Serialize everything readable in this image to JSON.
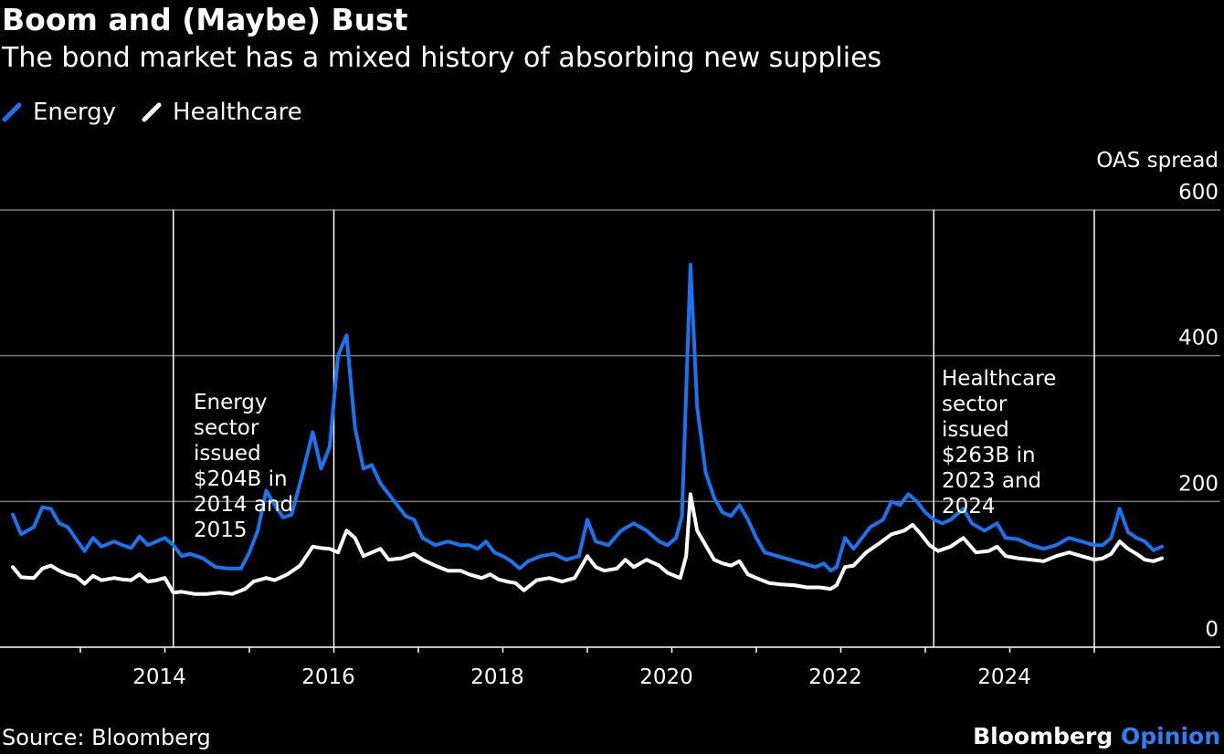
{
  "header": {
    "title": "Boom and (Maybe) Bust",
    "subtitle": "The bond market has a mixed history of absorbing new supplies"
  },
  "legend": [
    {
      "label": "Energy",
      "color": "#1a73f0"
    },
    {
      "label": "Healthcare",
      "color": "#ffffff"
    }
  ],
  "footer": {
    "source": "Source: Bloomberg",
    "brand_main": "Bloomberg",
    "brand_accent": "Opinion"
  },
  "chart_data": {
    "type": "line",
    "ylabel": "OAS spread",
    "ylim": [
      0,
      600
    ],
    "yticks": [
      0,
      200,
      400,
      600
    ],
    "xlim": [
      2012.2,
      2025.8
    ],
    "xtick_labels": [
      "2014",
      "2016",
      "2018",
      "2020",
      "2022",
      "2024"
    ],
    "xtick_positions": [
      2014,
      2016,
      2018,
      2020,
      2022,
      2024
    ],
    "minor_xticks": [
      2013,
      2015,
      2017,
      2019,
      2021,
      2023,
      2025
    ],
    "grid": true,
    "legend_position": "top-left",
    "annotations": [
      {
        "text_lines": [
          "Energy",
          "sector",
          "issued",
          "$204B in",
          "2014 and",
          "2015"
        ]
      },
      {
        "text_lines": [
          "Healthcare",
          "sector",
          "issued",
          "$263B in",
          "2023 and",
          "2024"
        ]
      }
    ],
    "vlines": [
      2014.1,
      2016.0,
      2023.1,
      2025.0
    ],
    "series": [
      {
        "name": "Energy",
        "color": "#1a73f0",
        "points": [
          [
            2012.2,
            182
          ],
          [
            2012.3,
            155
          ],
          [
            2012.45,
            165
          ],
          [
            2012.55,
            192
          ],
          [
            2012.65,
            190
          ],
          [
            2012.75,
            170
          ],
          [
            2012.85,
            165
          ],
          [
            2012.95,
            148
          ],
          [
            2013.05,
            132
          ],
          [
            2013.15,
            150
          ],
          [
            2013.25,
            138
          ],
          [
            2013.4,
            145
          ],
          [
            2013.5,
            140
          ],
          [
            2013.6,
            136
          ],
          [
            2013.7,
            152
          ],
          [
            2013.8,
            140
          ],
          [
            2013.9,
            145
          ],
          [
            2014.0,
            150
          ],
          [
            2014.1,
            140
          ],
          [
            2014.2,
            125
          ],
          [
            2014.3,
            128
          ],
          [
            2014.45,
            122
          ],
          [
            2014.6,
            110
          ],
          [
            2014.75,
            108
          ],
          [
            2014.9,
            108
          ],
          [
            2015.0,
            130
          ],
          [
            2015.1,
            160
          ],
          [
            2015.2,
            215
          ],
          [
            2015.3,
            195
          ],
          [
            2015.4,
            178
          ],
          [
            2015.5,
            182
          ],
          [
            2015.6,
            225
          ],
          [
            2015.75,
            295
          ],
          [
            2015.85,
            245
          ],
          [
            2015.95,
            275
          ],
          [
            2016.05,
            400
          ],
          [
            2016.15,
            428
          ],
          [
            2016.25,
            302
          ],
          [
            2016.35,
            245
          ],
          [
            2016.45,
            250
          ],
          [
            2016.55,
            225
          ],
          [
            2016.65,
            210
          ],
          [
            2016.75,
            195
          ],
          [
            2016.85,
            180
          ],
          [
            2016.95,
            175
          ],
          [
            2017.05,
            150
          ],
          [
            2017.2,
            140
          ],
          [
            2017.35,
            145
          ],
          [
            2017.5,
            140
          ],
          [
            2017.6,
            140
          ],
          [
            2017.7,
            135
          ],
          [
            2017.8,
            145
          ],
          [
            2017.9,
            130
          ],
          [
            2018.0,
            125
          ],
          [
            2018.1,
            118
          ],
          [
            2018.2,
            108
          ],
          [
            2018.3,
            118
          ],
          [
            2018.45,
            125
          ],
          [
            2018.6,
            128
          ],
          [
            2018.75,
            120
          ],
          [
            2018.9,
            125
          ],
          [
            2019.0,
            175
          ],
          [
            2019.1,
            145
          ],
          [
            2019.25,
            140
          ],
          [
            2019.4,
            160
          ],
          [
            2019.55,
            170
          ],
          [
            2019.7,
            160
          ],
          [
            2019.85,
            145
          ],
          [
            2019.95,
            140
          ],
          [
            2020.05,
            150
          ],
          [
            2020.12,
            180
          ],
          [
            2020.22,
            525
          ],
          [
            2020.3,
            330
          ],
          [
            2020.4,
            240
          ],
          [
            2020.5,
            205
          ],
          [
            2020.6,
            185
          ],
          [
            2020.7,
            180
          ],
          [
            2020.8,
            195
          ],
          [
            2020.9,
            175
          ],
          [
            2021.0,
            150
          ],
          [
            2021.1,
            130
          ],
          [
            2021.25,
            125
          ],
          [
            2021.4,
            120
          ],
          [
            2021.55,
            115
          ],
          [
            2021.7,
            110
          ],
          [
            2021.8,
            115
          ],
          [
            2021.88,
            105
          ],
          [
            2021.95,
            110
          ],
          [
            2022.05,
            150
          ],
          [
            2022.15,
            135
          ],
          [
            2022.25,
            150
          ],
          [
            2022.35,
            165
          ],
          [
            2022.5,
            175
          ],
          [
            2022.6,
            200
          ],
          [
            2022.7,
            195
          ],
          [
            2022.8,
            210
          ],
          [
            2022.9,
            200
          ],
          [
            2023.0,
            185
          ],
          [
            2023.1,
            175
          ],
          [
            2023.2,
            170
          ],
          [
            2023.3,
            175
          ],
          [
            2023.45,
            190
          ],
          [
            2023.55,
            170
          ],
          [
            2023.7,
            160
          ],
          [
            2023.85,
            170
          ],
          [
            2023.95,
            150
          ],
          [
            2024.1,
            148
          ],
          [
            2024.25,
            140
          ],
          [
            2024.4,
            135
          ],
          [
            2024.55,
            140
          ],
          [
            2024.7,
            150
          ],
          [
            2024.85,
            145
          ],
          [
            2025.0,
            140
          ],
          [
            2025.1,
            140
          ],
          [
            2025.2,
            150
          ],
          [
            2025.3,
            190
          ],
          [
            2025.4,
            158
          ],
          [
            2025.5,
            150
          ],
          [
            2025.6,
            145
          ],
          [
            2025.7,
            133
          ],
          [
            2025.8,
            138
          ]
        ]
      },
      {
        "name": "Healthcare",
        "color": "#ffffff",
        "points": [
          [
            2012.2,
            110
          ],
          [
            2012.3,
            96
          ],
          [
            2012.45,
            95
          ],
          [
            2012.55,
            108
          ],
          [
            2012.65,
            112
          ],
          [
            2012.75,
            105
          ],
          [
            2012.85,
            100
          ],
          [
            2012.95,
            97
          ],
          [
            2013.05,
            87
          ],
          [
            2013.15,
            98
          ],
          [
            2013.25,
            92
          ],
          [
            2013.4,
            95
          ],
          [
            2013.5,
            93
          ],
          [
            2013.6,
            92
          ],
          [
            2013.7,
            100
          ],
          [
            2013.8,
            90
          ],
          [
            2013.9,
            92
          ],
          [
            2014.0,
            95
          ],
          [
            2014.1,
            75
          ],
          [
            2014.2,
            76
          ],
          [
            2014.35,
            73
          ],
          [
            2014.5,
            73
          ],
          [
            2014.65,
            75
          ],
          [
            2014.8,
            73
          ],
          [
            2014.95,
            80
          ],
          [
            2015.05,
            90
          ],
          [
            2015.2,
            95
          ],
          [
            2015.3,
            92
          ],
          [
            2015.45,
            100
          ],
          [
            2015.6,
            112
          ],
          [
            2015.75,
            138
          ],
          [
            2015.85,
            136
          ],
          [
            2015.95,
            135
          ],
          [
            2016.05,
            130
          ],
          [
            2016.15,
            160
          ],
          [
            2016.25,
            150
          ],
          [
            2016.35,
            125
          ],
          [
            2016.45,
            130
          ],
          [
            2016.55,
            135
          ],
          [
            2016.65,
            120
          ],
          [
            2016.8,
            122
          ],
          [
            2016.95,
            128
          ],
          [
            2017.05,
            120
          ],
          [
            2017.2,
            112
          ],
          [
            2017.35,
            105
          ],
          [
            2017.5,
            105
          ],
          [
            2017.6,
            100
          ],
          [
            2017.75,
            95
          ],
          [
            2017.85,
            100
          ],
          [
            2017.95,
            93
          ],
          [
            2018.05,
            90
          ],
          [
            2018.15,
            88
          ],
          [
            2018.25,
            78
          ],
          [
            2018.4,
            92
          ],
          [
            2018.55,
            95
          ],
          [
            2018.7,
            90
          ],
          [
            2018.85,
            95
          ],
          [
            2018.95,
            115
          ],
          [
            2019.0,
            125
          ],
          [
            2019.1,
            110
          ],
          [
            2019.2,
            105
          ],
          [
            2019.35,
            108
          ],
          [
            2019.45,
            120
          ],
          [
            2019.55,
            110
          ],
          [
            2019.7,
            120
          ],
          [
            2019.85,
            112
          ],
          [
            2019.95,
            102
          ],
          [
            2020.1,
            95
          ],
          [
            2020.17,
            125
          ],
          [
            2020.22,
            210
          ],
          [
            2020.3,
            160
          ],
          [
            2020.4,
            140
          ],
          [
            2020.5,
            120
          ],
          [
            2020.6,
            115
          ],
          [
            2020.7,
            112
          ],
          [
            2020.8,
            118
          ],
          [
            2020.9,
            100
          ],
          [
            2021.0,
            95
          ],
          [
            2021.15,
            88
          ],
          [
            2021.3,
            86
          ],
          [
            2021.45,
            85
          ],
          [
            2021.6,
            82
          ],
          [
            2021.75,
            82
          ],
          [
            2021.88,
            80
          ],
          [
            2021.95,
            85
          ],
          [
            2022.05,
            110
          ],
          [
            2022.15,
            112
          ],
          [
            2022.3,
            130
          ],
          [
            2022.45,
            142
          ],
          [
            2022.6,
            155
          ],
          [
            2022.75,
            160
          ],
          [
            2022.85,
            168
          ],
          [
            2022.95,
            155
          ],
          [
            2023.05,
            140
          ],
          [
            2023.15,
            132
          ],
          [
            2023.3,
            138
          ],
          [
            2023.45,
            150
          ],
          [
            2023.6,
            130
          ],
          [
            2023.75,
            132
          ],
          [
            2023.85,
            138
          ],
          [
            2023.95,
            125
          ],
          [
            2024.1,
            122
          ],
          [
            2024.25,
            120
          ],
          [
            2024.4,
            118
          ],
          [
            2024.55,
            125
          ],
          [
            2024.7,
            130
          ],
          [
            2024.85,
            125
          ],
          [
            2025.0,
            120
          ],
          [
            2025.1,
            122
          ],
          [
            2025.2,
            128
          ],
          [
            2025.3,
            145
          ],
          [
            2025.4,
            135
          ],
          [
            2025.5,
            128
          ],
          [
            2025.6,
            120
          ],
          [
            2025.7,
            118
          ],
          [
            2025.8,
            122
          ]
        ]
      }
    ]
  }
}
